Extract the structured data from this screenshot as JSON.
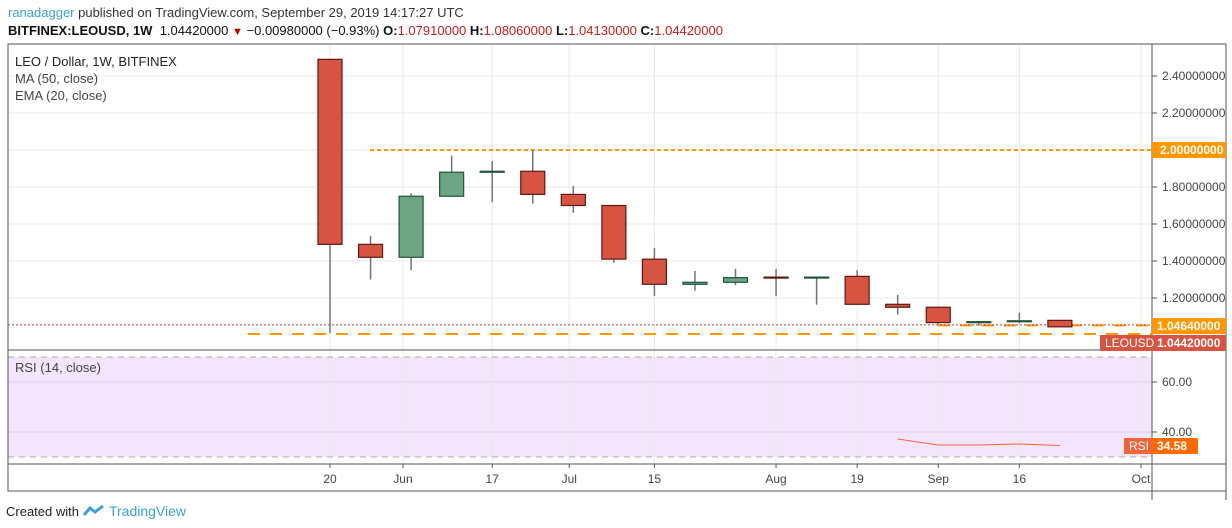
{
  "header": {
    "user": "ranadagger",
    "published": " published on TradingView.com, September 29, 2019 14:17:27 UTC",
    "symbol": "BITFINEX:LEOUSD, 1W",
    "last": "1.04420000",
    "change": "−0.00980000 (−0.93%)",
    "o_label": "O:",
    "o": "1.07910000",
    "h_label": "H:",
    "h": "1.08060000",
    "l_label": "L:",
    "l": "1.04130000",
    "c_label": "C:",
    "c": "1.04420000"
  },
  "legend": {
    "title": "LEO / Dollar, 1W, BITFINEX",
    "ma": "MA (50, close)",
    "ema": "EMA (20, close)",
    "rsi": "RSI (14, close)"
  },
  "footer": {
    "created": "Created with",
    "brand": "TradingView"
  },
  "colors": {
    "up": "#6ba583",
    "down": "#d75442",
    "up_border": "#225437",
    "down_border": "#5b1a13",
    "level": "#ff9800",
    "rsi": "#f0643c",
    "rsi_bg": "#f3e5fc"
  },
  "chart_data": {
    "type": "candlestick",
    "price_ylim": [
      0.95,
      2.55
    ],
    "price_ticks": [
      "2.40000000",
      "2.20000000",
      "2.00000000",
      "1.80000000",
      "1.60000000",
      "1.40000000",
      "1.20000000"
    ],
    "price_tick_values": [
      2.4,
      2.2,
      2.0,
      1.8,
      1.6,
      1.4,
      1.2
    ],
    "x_ticks": [
      "20",
      "Jun",
      "17",
      "Jul",
      "15",
      "Aug",
      "19",
      "Sep",
      "16",
      "Oct"
    ],
    "x_tick_index": [
      0,
      1.8,
      4,
      5.9,
      8,
      11,
      13,
      15,
      17,
      20
    ],
    "candles": [
      {
        "o": 2.49,
        "h": 2.49,
        "l": 1.01,
        "c": 1.49
      },
      {
        "o": 1.49,
        "h": 1.535,
        "l": 1.3,
        "c": 1.42
      },
      {
        "o": 1.42,
        "h": 1.766,
        "l": 1.35,
        "c": 1.75
      },
      {
        "o": 1.75,
        "h": 1.97,
        "l": 1.75,
        "c": 1.88
      },
      {
        "o": 1.88,
        "h": 1.94,
        "l": 1.72,
        "c": 1.885
      },
      {
        "o": 1.885,
        "h": 2.0,
        "l": 1.71,
        "c": 1.76
      },
      {
        "o": 1.76,
        "h": 1.805,
        "l": 1.66,
        "c": 1.7
      },
      {
        "o": 1.7,
        "h": 1.7,
        "l": 1.39,
        "c": 1.41
      },
      {
        "o": 1.41,
        "h": 1.47,
        "l": 1.21,
        "c": 1.274
      },
      {
        "o": 1.274,
        "h": 1.346,
        "l": 1.24,
        "c": 1.285
      },
      {
        "o": 1.285,
        "h": 1.357,
        "l": 1.27,
        "c": 1.31
      },
      {
        "o": 1.313,
        "h": 1.357,
        "l": 1.21,
        "c": 1.312
      },
      {
        "o": 1.312,
        "h": 1.313,
        "l": 1.164,
        "c": 1.313
      },
      {
        "o": 1.317,
        "h": 1.35,
        "l": 1.166,
        "c": 1.166
      },
      {
        "o": 1.166,
        "h": 1.216,
        "l": 1.11,
        "c": 1.15
      },
      {
        "o": 1.15,
        "h": 1.15,
        "l": 1.058,
        "c": 1.067
      },
      {
        "o": 1.067,
        "h": 1.075,
        "l": 1.05,
        "c": 1.072
      },
      {
        "o": 1.072,
        "h": 1.12,
        "l": 1.063,
        "c": 1.077
      },
      {
        "o": 1.0791,
        "h": 1.0806,
        "l": 1.0413,
        "c": 1.0442
      }
    ],
    "horizontal_levels": [
      {
        "value": 2.0,
        "label": "2.00000000"
      },
      {
        "value": 1.0464,
        "label": "1.04640000"
      },
      {
        "value": 1.0
      }
    ],
    "last_price": {
      "symbol": "LEOUSD",
      "value": 1.0442,
      "label": "1.04420000"
    },
    "rsi": {
      "ylim": [
        25,
        75
      ],
      "ticks": [
        "60.00",
        "40.00"
      ],
      "tick_values": [
        60,
        40
      ],
      "bands": [
        70,
        30
      ],
      "values": [
        null,
        null,
        null,
        null,
        null,
        null,
        null,
        null,
        null,
        null,
        null,
        null,
        null,
        null,
        37.2,
        34.8,
        34.8,
        35.2,
        34.58
      ],
      "label": "RSI",
      "last_label": "34.58"
    }
  }
}
